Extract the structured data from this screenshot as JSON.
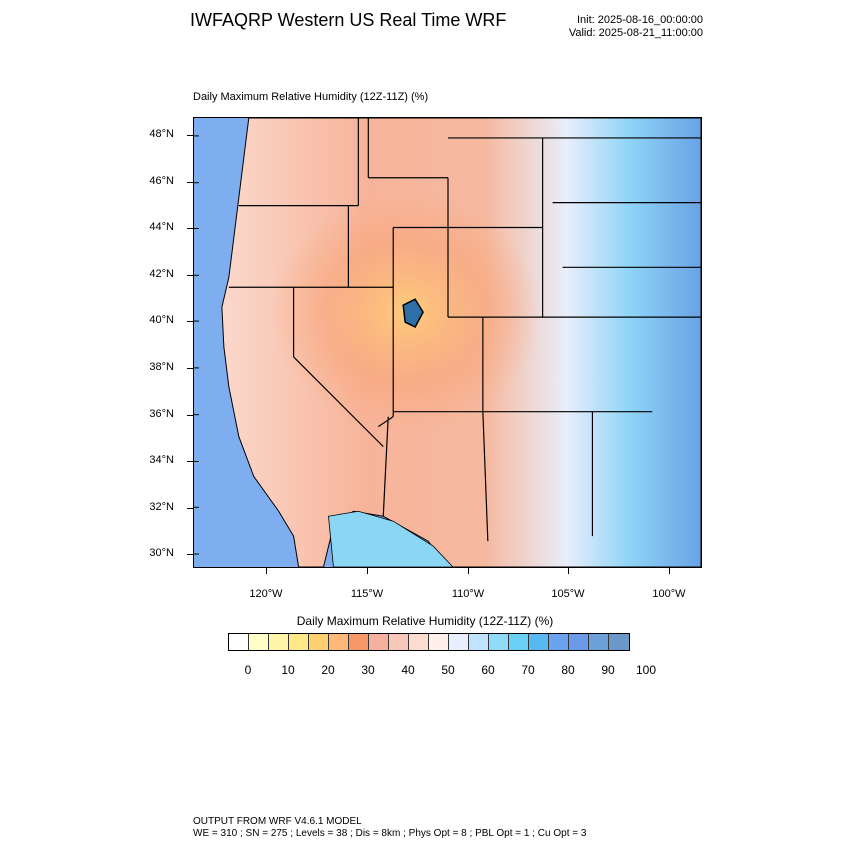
{
  "header": {
    "title": "IWFAQRP Western US Real Time WRF",
    "init": "Init: 2025-08-16_00:00:00",
    "valid": "Valid: 2025-08-21_11:00:00"
  },
  "plot": {
    "title": "Daily Maximum Relative Humidity (12Z-11Z)   (%)"
  },
  "map": {
    "lat_labels": [
      "48°N",
      "46°N",
      "44°N",
      "42°N",
      "40°N",
      "38°N",
      "36°N",
      "34°N",
      "32°N",
      "30°N"
    ],
    "lon_labels": [
      "120°W",
      "115°W",
      "110°W",
      "105°W",
      "100°W"
    ],
    "ocean_color": "#7eaef0"
  },
  "colorbar": {
    "title": "Daily Maximum Relative Humidity (12Z-11Z)  (%)",
    "colors": [
      "#ffffff",
      "#ffffc8",
      "#fff5a8",
      "#ffe888",
      "#ffd070",
      "#ffb878",
      "#f79868",
      "#f5b0a0",
      "#f8c8b8",
      "#fcdcd0",
      "#fff0ec",
      "#e8f0ff",
      "#c0e4ff",
      "#90dcf8",
      "#6ad0f5",
      "#58b8f0",
      "#6aa2f0",
      "#6a9ae8",
      "#6ca0d8",
      "#6c98c8"
    ],
    "labels": [
      "0",
      "10",
      "20",
      "30",
      "40",
      "50",
      "60",
      "70",
      "80",
      "90",
      "100"
    ]
  },
  "footer": {
    "line1": "OUTPUT FROM WRF V4.6.1 MODEL",
    "line2": "WE = 310 ; SN = 275 ; Levels = 38 ; Dis = 8km ; Phys Opt = 8 ; PBL Opt = 1 ; Cu Opt = 3"
  }
}
